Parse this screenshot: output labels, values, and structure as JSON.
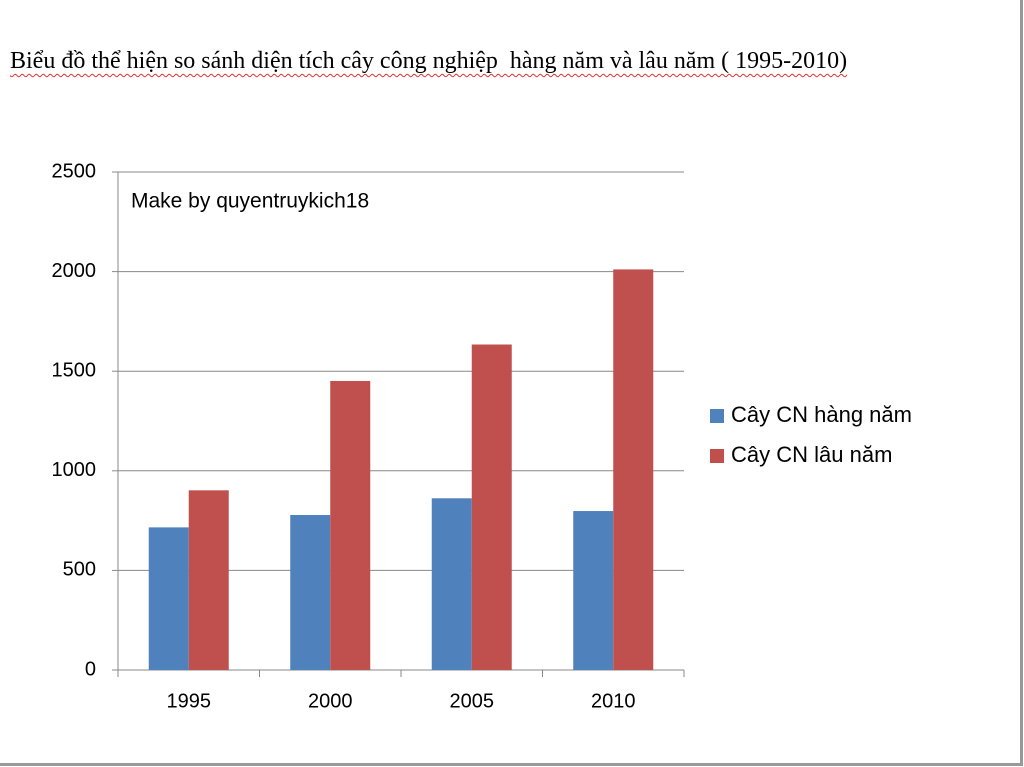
{
  "chart_data": {
    "type": "bar",
    "title": "Biểu đồ thể hiện so sánh diện tích cây công nghiệp  hàng năm và lâu năm ( 1995-2010)",
    "annotation": "Make by quyentruykich18",
    "categories": [
      "1995",
      "2000",
      "2005",
      "2010"
    ],
    "series": [
      {
        "name": "Cây CN hàng năm",
        "color": "#4f81bd",
        "values": [
          716,
          778,
          862,
          798
        ]
      },
      {
        "name": "Cây CN lâu năm",
        "color": "#c0504d",
        "values": [
          902,
          1451,
          1634,
          2011
        ]
      }
    ],
    "ylim": [
      0,
      2500
    ],
    "yticks": [
      0,
      500,
      1000,
      1500,
      2000,
      2500
    ],
    "grid": true,
    "legend": "right"
  }
}
